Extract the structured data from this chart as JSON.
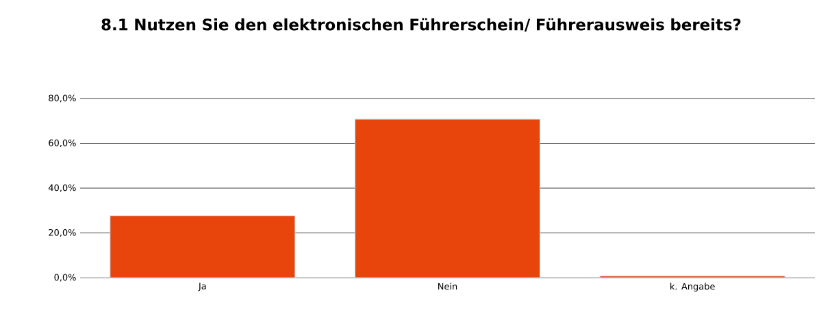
{
  "chart_data": {
    "type": "bar",
    "title": "8.1 Nutzen Sie den elektronischen Führerschein/ Führerausweis bereits?",
    "categories": [
      "Ja",
      "Nein",
      "k. Angabe"
    ],
    "values": [
      27.6,
      70.8,
      0.8
    ],
    "color": "#e8450c",
    "ylim": [
      0,
      80
    ],
    "yticks": [
      {
        "value": 0,
        "label": "0,0%"
      },
      {
        "value": 20,
        "label": "20,0%"
      },
      {
        "value": 40,
        "label": "40,0%"
      },
      {
        "value": 60,
        "label": "60,0%"
      },
      {
        "value": 80,
        "label": "80,0%"
      }
    ],
    "grid": "y"
  }
}
